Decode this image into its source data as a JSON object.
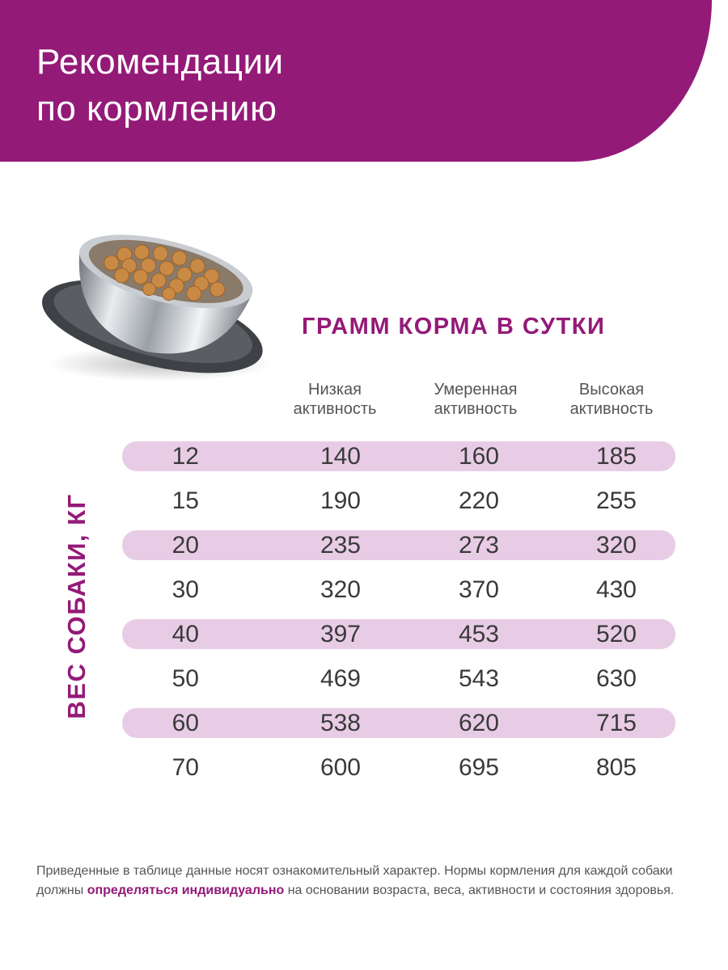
{
  "header": {
    "title_line1": "Рекомендации",
    "title_line2": "по кормлению"
  },
  "subheading": "ГРАММ КОРМА В СУТКИ",
  "y_axis_label": "ВЕС СОБАКИ, КГ",
  "columns": [
    {
      "line1": "Низкая",
      "line2": "активность"
    },
    {
      "line1": "Умеренная",
      "line2": "активность"
    },
    {
      "line1": "Высокая",
      "line2": "активность"
    }
  ],
  "rows": [
    {
      "weight": "12",
      "low": "140",
      "moderate": "160",
      "high": "185"
    },
    {
      "weight": "15",
      "low": "190",
      "moderate": "220",
      "high": "255"
    },
    {
      "weight": "20",
      "low": "235",
      "moderate": "273",
      "high": "320"
    },
    {
      "weight": "30",
      "low": "320",
      "moderate": "370",
      "high": "430"
    },
    {
      "weight": "40",
      "low": "397",
      "moderate": "453",
      "high": "520"
    },
    {
      "weight": "50",
      "low": "469",
      "moderate": "543",
      "high": "630"
    },
    {
      "weight": "60",
      "low": "538",
      "moderate": "620",
      "high": "715"
    },
    {
      "weight": "70",
      "low": "600",
      "moderate": "695",
      "high": "805"
    }
  ],
  "footnote": {
    "before": "Приведенные в таблице данные носят ознакомительный характер. Нормы кормления для каждой собаки должны ",
    "emphasis": "определяться индивидуально",
    "after": " на основании возраста, веса, активности и состояния здоровья."
  },
  "colors": {
    "brand": "#941a78",
    "row_stripe": "#e8cce6"
  },
  "icons": {
    "bowl": "dog-food-bowl-image"
  }
}
